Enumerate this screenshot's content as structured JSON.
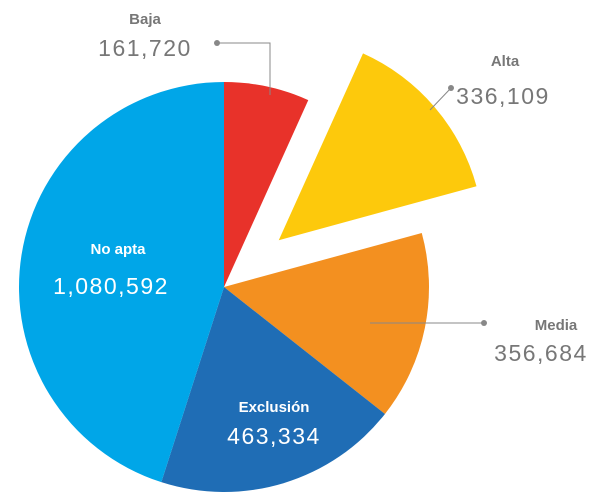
{
  "chart_data": {
    "type": "pie",
    "categories": [
      "Baja",
      "Alta",
      "Media",
      "Exclusión",
      "No apta"
    ],
    "values": [
      161720,
      336109,
      356684,
      463334,
      1080592
    ],
    "value_labels": [
      "161,720",
      "336,109",
      "356,684",
      "463,334",
      "1,080,592"
    ],
    "colors": [
      "#e8322a",
      "#fdc90c",
      "#f39020",
      "#1f6db5",
      "#00a6e8"
    ],
    "explode": [
      false,
      true,
      false,
      false,
      false
    ]
  }
}
